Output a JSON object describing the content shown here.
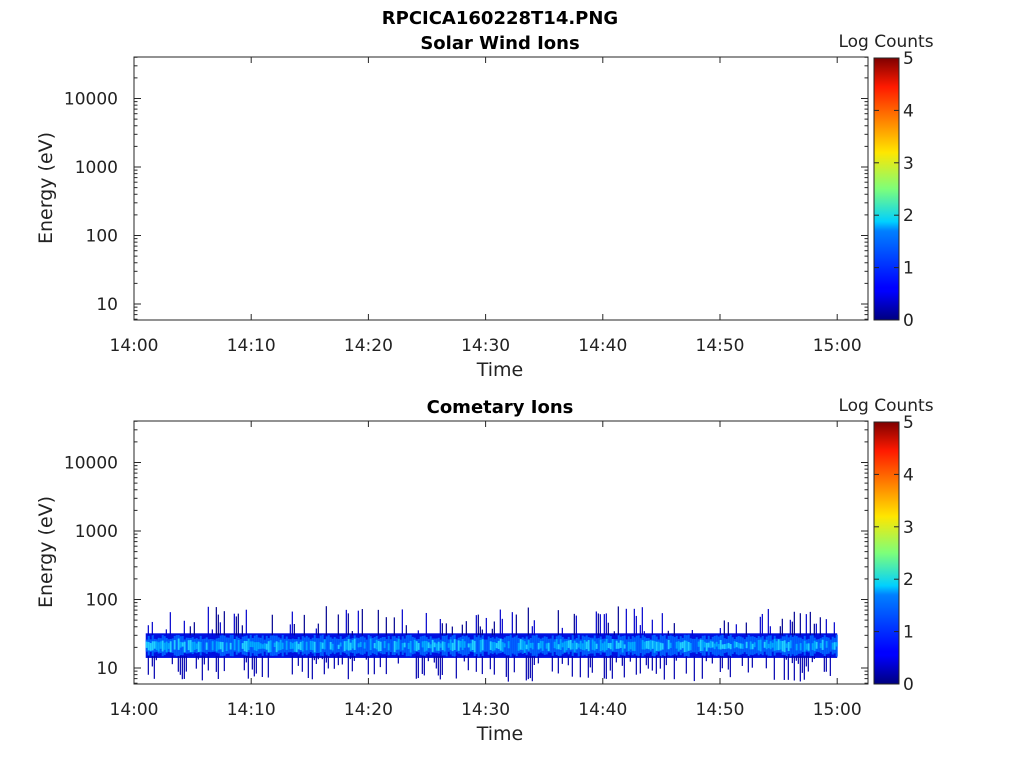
{
  "figure_title": "RPCICA160228T14.PNG",
  "chart_data": [
    {
      "type": "heatmap",
      "title": "Solar Wind Ions",
      "xlabel": "Time",
      "ylabel": "Energy (eV)",
      "x_ticks": [
        "14:00",
        "14:10",
        "14:20",
        "14:30",
        "14:40",
        "14:50",
        "15:00"
      ],
      "y_ticks": [
        "10",
        "100",
        "1000",
        "10000"
      ],
      "y_scale": "log",
      "colorbar": {
        "label": "Log Counts",
        "ticks": [
          "0",
          "1",
          "2",
          "3",
          "4",
          "5"
        ],
        "range": [
          0,
          5
        ],
        "colormap": "jet"
      },
      "band": null
    },
    {
      "type": "heatmap",
      "title": "Cometary Ions",
      "xlabel": "Time",
      "ylabel": "Energy (eV)",
      "x_ticks": [
        "14:00",
        "14:10",
        "14:20",
        "14:30",
        "14:40",
        "14:50",
        "15:00"
      ],
      "y_ticks": [
        "10",
        "100",
        "1000",
        "10000"
      ],
      "y_scale": "log",
      "colorbar": {
        "label": "Log Counts",
        "ticks": [
          "0",
          "1",
          "2",
          "3",
          "4",
          "5"
        ],
        "range": [
          0,
          5
        ],
        "colormap": "jet"
      },
      "band": {
        "time_start": "14:01",
        "time_end": "15:00",
        "energy_core_eV": [
          15,
          30
        ],
        "energy_extent_eV": [
          7,
          80
        ],
        "peak_log_counts": 2,
        "typical_log_counts": 1.5
      }
    }
  ]
}
